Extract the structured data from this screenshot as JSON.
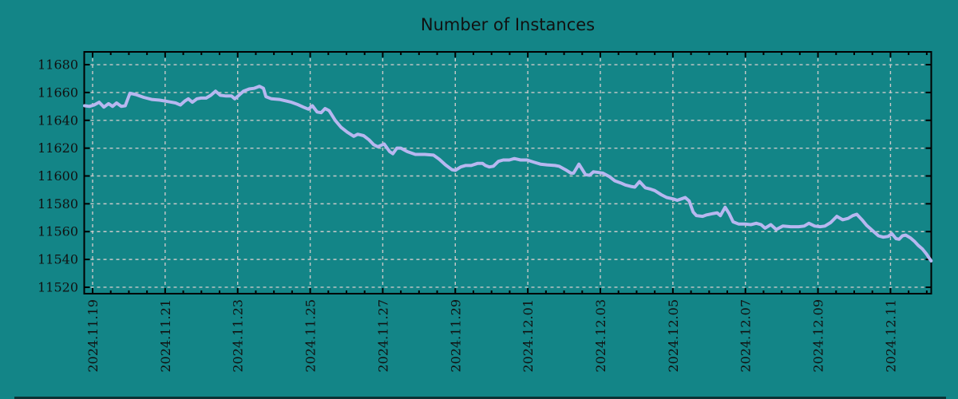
{
  "title": "Number of Instances",
  "colors": {
    "background": "#138587",
    "line": "#b7b7f0",
    "grid": "#c9c9c9",
    "axis": "#000000",
    "text": "#111111",
    "bottom_edge": "#0a3335"
  },
  "chart_data": {
    "type": "line",
    "title": "Number of Instances",
    "legend": "none",
    "grid": "dashed",
    "x_axis": {
      "epoch_label": "2024.11.19",
      "tick_days": [
        0,
        2,
        4,
        6,
        8,
        10,
        12,
        14,
        16,
        18,
        20,
        22
      ],
      "tick_labels": [
        "2024.11.19",
        "2024.11.21",
        "2024.11.23",
        "2024.11.25",
        "2024.11.27",
        "2024.11.29",
        "2024.12.01",
        "2024.12.03",
        "2024.12.05",
        "2024.12.07",
        "2024.12.09",
        "2024.12.11"
      ],
      "minor_step_days": 0.5,
      "range_days": [
        -0.231,
        23.124
      ]
    },
    "y_axis": {
      "ticks": [
        11520,
        11540,
        11560,
        11580,
        11600,
        11620,
        11640,
        11660,
        11680
      ],
      "range": [
        11515.4,
        11689.2
      ]
    },
    "series": [
      {
        "name": "instances",
        "color": "#b7b7f0",
        "points": [
          [
            -0.22,
            11650.5
          ],
          [
            -0.09,
            11650
          ],
          [
            0.04,
            11651
          ],
          [
            0.18,
            11653
          ],
          [
            0.31,
            11649.5
          ],
          [
            0.44,
            11652
          ],
          [
            0.55,
            11650
          ],
          [
            0.66,
            11652.5
          ],
          [
            0.79,
            11650
          ],
          [
            0.9,
            11650.5
          ],
          [
            1.03,
            11659.5
          ],
          [
            1.19,
            11658.5
          ],
          [
            1.41,
            11656.5
          ],
          [
            1.63,
            11655
          ],
          [
            1.85,
            11654.5
          ],
          [
            2.07,
            11653.5
          ],
          [
            2.29,
            11652.5
          ],
          [
            2.42,
            11651
          ],
          [
            2.55,
            11654
          ],
          [
            2.64,
            11655.5
          ],
          [
            2.75,
            11653
          ],
          [
            2.88,
            11655.5
          ],
          [
            2.99,
            11656
          ],
          [
            3.13,
            11656
          ],
          [
            3.26,
            11658
          ],
          [
            3.39,
            11661
          ],
          [
            3.52,
            11658
          ],
          [
            3.68,
            11657.5
          ],
          [
            3.83,
            11657.5
          ],
          [
            3.92,
            11655.5
          ],
          [
            3.99,
            11657
          ],
          [
            4.16,
            11661
          ],
          [
            4.32,
            11662.5
          ],
          [
            4.45,
            11663
          ],
          [
            4.6,
            11664.5
          ],
          [
            4.71,
            11663
          ],
          [
            4.78,
            11657
          ],
          [
            4.93,
            11655.5
          ],
          [
            5.15,
            11655
          ],
          [
            5.33,
            11654
          ],
          [
            5.48,
            11653
          ],
          [
            5.64,
            11651.5
          ],
          [
            5.81,
            11649.5
          ],
          [
            5.95,
            11648
          ],
          [
            6.06,
            11650.5
          ],
          [
            6.19,
            11646
          ],
          [
            6.3,
            11645.5
          ],
          [
            6.41,
            11648.5
          ],
          [
            6.52,
            11647
          ],
          [
            6.69,
            11640
          ],
          [
            6.85,
            11635
          ],
          [
            7.02,
            11631.5
          ],
          [
            7.2,
            11628.5
          ],
          [
            7.31,
            11630
          ],
          [
            7.47,
            11629
          ],
          [
            7.62,
            11626
          ],
          [
            7.75,
            11622.5
          ],
          [
            7.86,
            11621
          ],
          [
            8.04,
            11623
          ],
          [
            8.19,
            11617.5
          ],
          [
            8.28,
            11616
          ],
          [
            8.39,
            11620
          ],
          [
            8.5,
            11620
          ],
          [
            8.68,
            11617.5
          ],
          [
            8.9,
            11615.5
          ],
          [
            9.16,
            11615.5
          ],
          [
            9.4,
            11615
          ],
          [
            9.56,
            11612
          ],
          [
            9.73,
            11608
          ],
          [
            9.91,
            11604.5
          ],
          [
            10.0,
            11604
          ],
          [
            10.15,
            11606.5
          ],
          [
            10.28,
            11607.5
          ],
          [
            10.44,
            11607.5
          ],
          [
            10.61,
            11609
          ],
          [
            10.75,
            11609
          ],
          [
            10.83,
            11607.5
          ],
          [
            10.94,
            11606.5
          ],
          [
            11.05,
            11607
          ],
          [
            11.19,
            11610.5
          ],
          [
            11.32,
            11611.5
          ],
          [
            11.49,
            11611.5
          ],
          [
            11.63,
            11612.5
          ],
          [
            11.8,
            11611.5
          ],
          [
            11.98,
            11611.5
          ],
          [
            12.16,
            11610
          ],
          [
            12.35,
            11608.5
          ],
          [
            12.53,
            11608
          ],
          [
            12.75,
            11607.5
          ],
          [
            12.86,
            11607
          ],
          [
            13.04,
            11604.5
          ],
          [
            13.19,
            11602
          ],
          [
            13.26,
            11602
          ],
          [
            13.41,
            11608.5
          ],
          [
            13.59,
            11601
          ],
          [
            13.7,
            11600.5
          ],
          [
            13.81,
            11603
          ],
          [
            13.96,
            11602.5
          ],
          [
            14.07,
            11602
          ],
          [
            14.25,
            11599.5
          ],
          [
            14.4,
            11596.5
          ],
          [
            14.56,
            11595
          ],
          [
            14.69,
            11593.5
          ],
          [
            14.84,
            11592.5
          ],
          [
            14.95,
            11592
          ],
          [
            15.08,
            11596
          ],
          [
            15.24,
            11591.5
          ],
          [
            15.39,
            11590.5
          ],
          [
            15.5,
            11589.5
          ],
          [
            15.68,
            11586.5
          ],
          [
            15.83,
            11584.5
          ],
          [
            16.01,
            11583.5
          ],
          [
            16.12,
            11582.5
          ],
          [
            16.23,
            11583.5
          ],
          [
            16.34,
            11584.5
          ],
          [
            16.45,
            11582
          ],
          [
            16.56,
            11574
          ],
          [
            16.65,
            11571.5
          ],
          [
            16.82,
            11571
          ],
          [
            16.93,
            11572
          ],
          [
            17.11,
            11573
          ],
          [
            17.22,
            11573.5
          ],
          [
            17.31,
            11571.5
          ],
          [
            17.44,
            11577.5
          ],
          [
            17.55,
            11573
          ],
          [
            17.66,
            11567
          ],
          [
            17.81,
            11565.5
          ],
          [
            17.99,
            11565.5
          ],
          [
            18.15,
            11565
          ],
          [
            18.3,
            11566
          ],
          [
            18.43,
            11565
          ],
          [
            18.54,
            11562.5
          ],
          [
            18.7,
            11565
          ],
          [
            18.85,
            11561.5
          ],
          [
            19.03,
            11564
          ],
          [
            19.25,
            11563.5
          ],
          [
            19.47,
            11563.5
          ],
          [
            19.62,
            11564
          ],
          [
            19.75,
            11566
          ],
          [
            19.91,
            11564
          ],
          [
            20.06,
            11563.5
          ],
          [
            20.19,
            11564
          ],
          [
            20.35,
            11566.5
          ],
          [
            20.52,
            11571
          ],
          [
            20.68,
            11568.5
          ],
          [
            20.83,
            11569.5
          ],
          [
            20.96,
            11571.5
          ],
          [
            21.07,
            11572.5
          ],
          [
            21.23,
            11568
          ],
          [
            21.34,
            11564.5
          ],
          [
            21.45,
            11562
          ],
          [
            21.56,
            11559.5
          ],
          [
            21.67,
            11557
          ],
          [
            21.8,
            11556
          ],
          [
            21.93,
            11556.5
          ],
          [
            22.04,
            11558.5
          ],
          [
            22.15,
            11555
          ],
          [
            22.24,
            11554.5
          ],
          [
            22.33,
            11557
          ],
          [
            22.42,
            11557.5
          ],
          [
            22.55,
            11555.5
          ],
          [
            22.66,
            11553
          ],
          [
            22.77,
            11550
          ],
          [
            22.88,
            11547.5
          ],
          [
            22.99,
            11544
          ],
          [
            23.08,
            11540.5
          ],
          [
            23.12,
            11539
          ]
        ]
      }
    ]
  }
}
